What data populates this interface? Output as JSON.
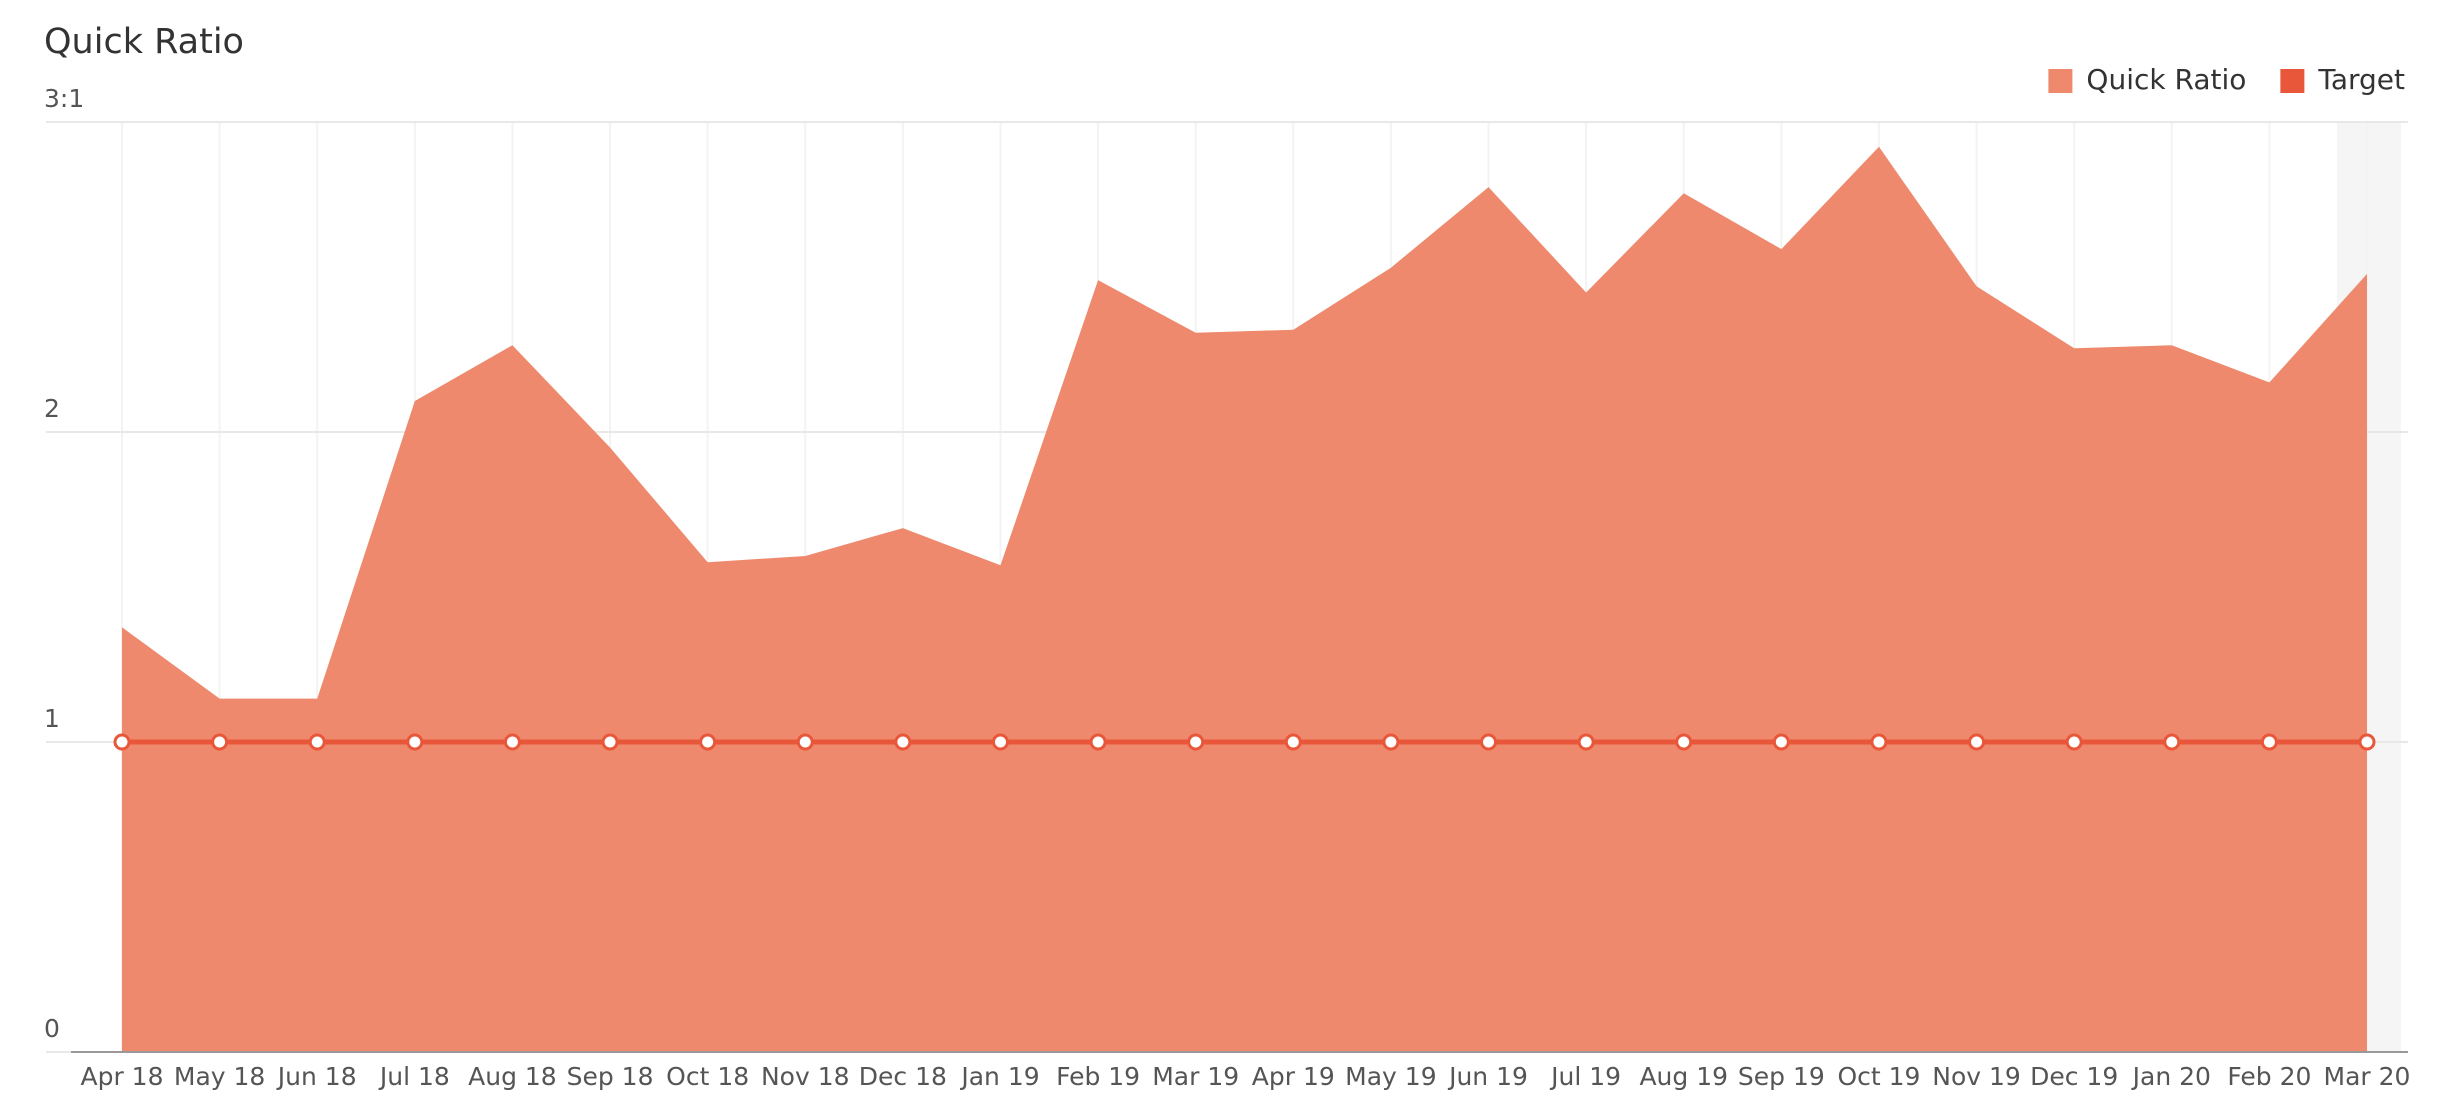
{
  "chart_data": {
    "type": "area",
    "title": "Quick Ratio",
    "categories": [
      "Apr 18",
      "May 18",
      "Jun 18",
      "Jul 18",
      "Aug 18",
      "Sep 18",
      "Oct 18",
      "Nov 18",
      "Dec 18",
      "Jan 19",
      "Feb 19",
      "Mar 19",
      "Apr 19",
      "May 19",
      "Jun 19",
      "Jul 19",
      "Aug 19",
      "Sep 19",
      "Oct 19",
      "Nov 19",
      "Dec 19",
      "Jan 20",
      "Feb 20",
      "Mar 20"
    ],
    "series": [
      {
        "name": "Quick Ratio",
        "type": "area",
        "color": "#ee896d",
        "values": [
          1.37,
          1.14,
          1.14,
          2.1,
          2.28,
          1.95,
          1.58,
          1.6,
          1.69,
          1.57,
          2.49,
          2.32,
          2.33,
          2.53,
          2.79,
          2.45,
          2.77,
          2.59,
          2.92,
          2.47,
          2.27,
          2.28,
          2.16,
          2.51
        ]
      },
      {
        "name": "Target",
        "type": "line",
        "color": "#e9573a",
        "values": [
          1,
          1,
          1,
          1,
          1,
          1,
          1,
          1,
          1,
          1,
          1,
          1,
          1,
          1,
          1,
          1,
          1,
          1,
          1,
          1,
          1,
          1,
          1,
          1
        ]
      }
    ],
    "ylim": [
      0,
      3
    ],
    "yticks": [
      0,
      1,
      2,
      {
        "value": 3,
        "label": "3:1"
      }
    ],
    "grid": true,
    "legend": "top-right"
  }
}
